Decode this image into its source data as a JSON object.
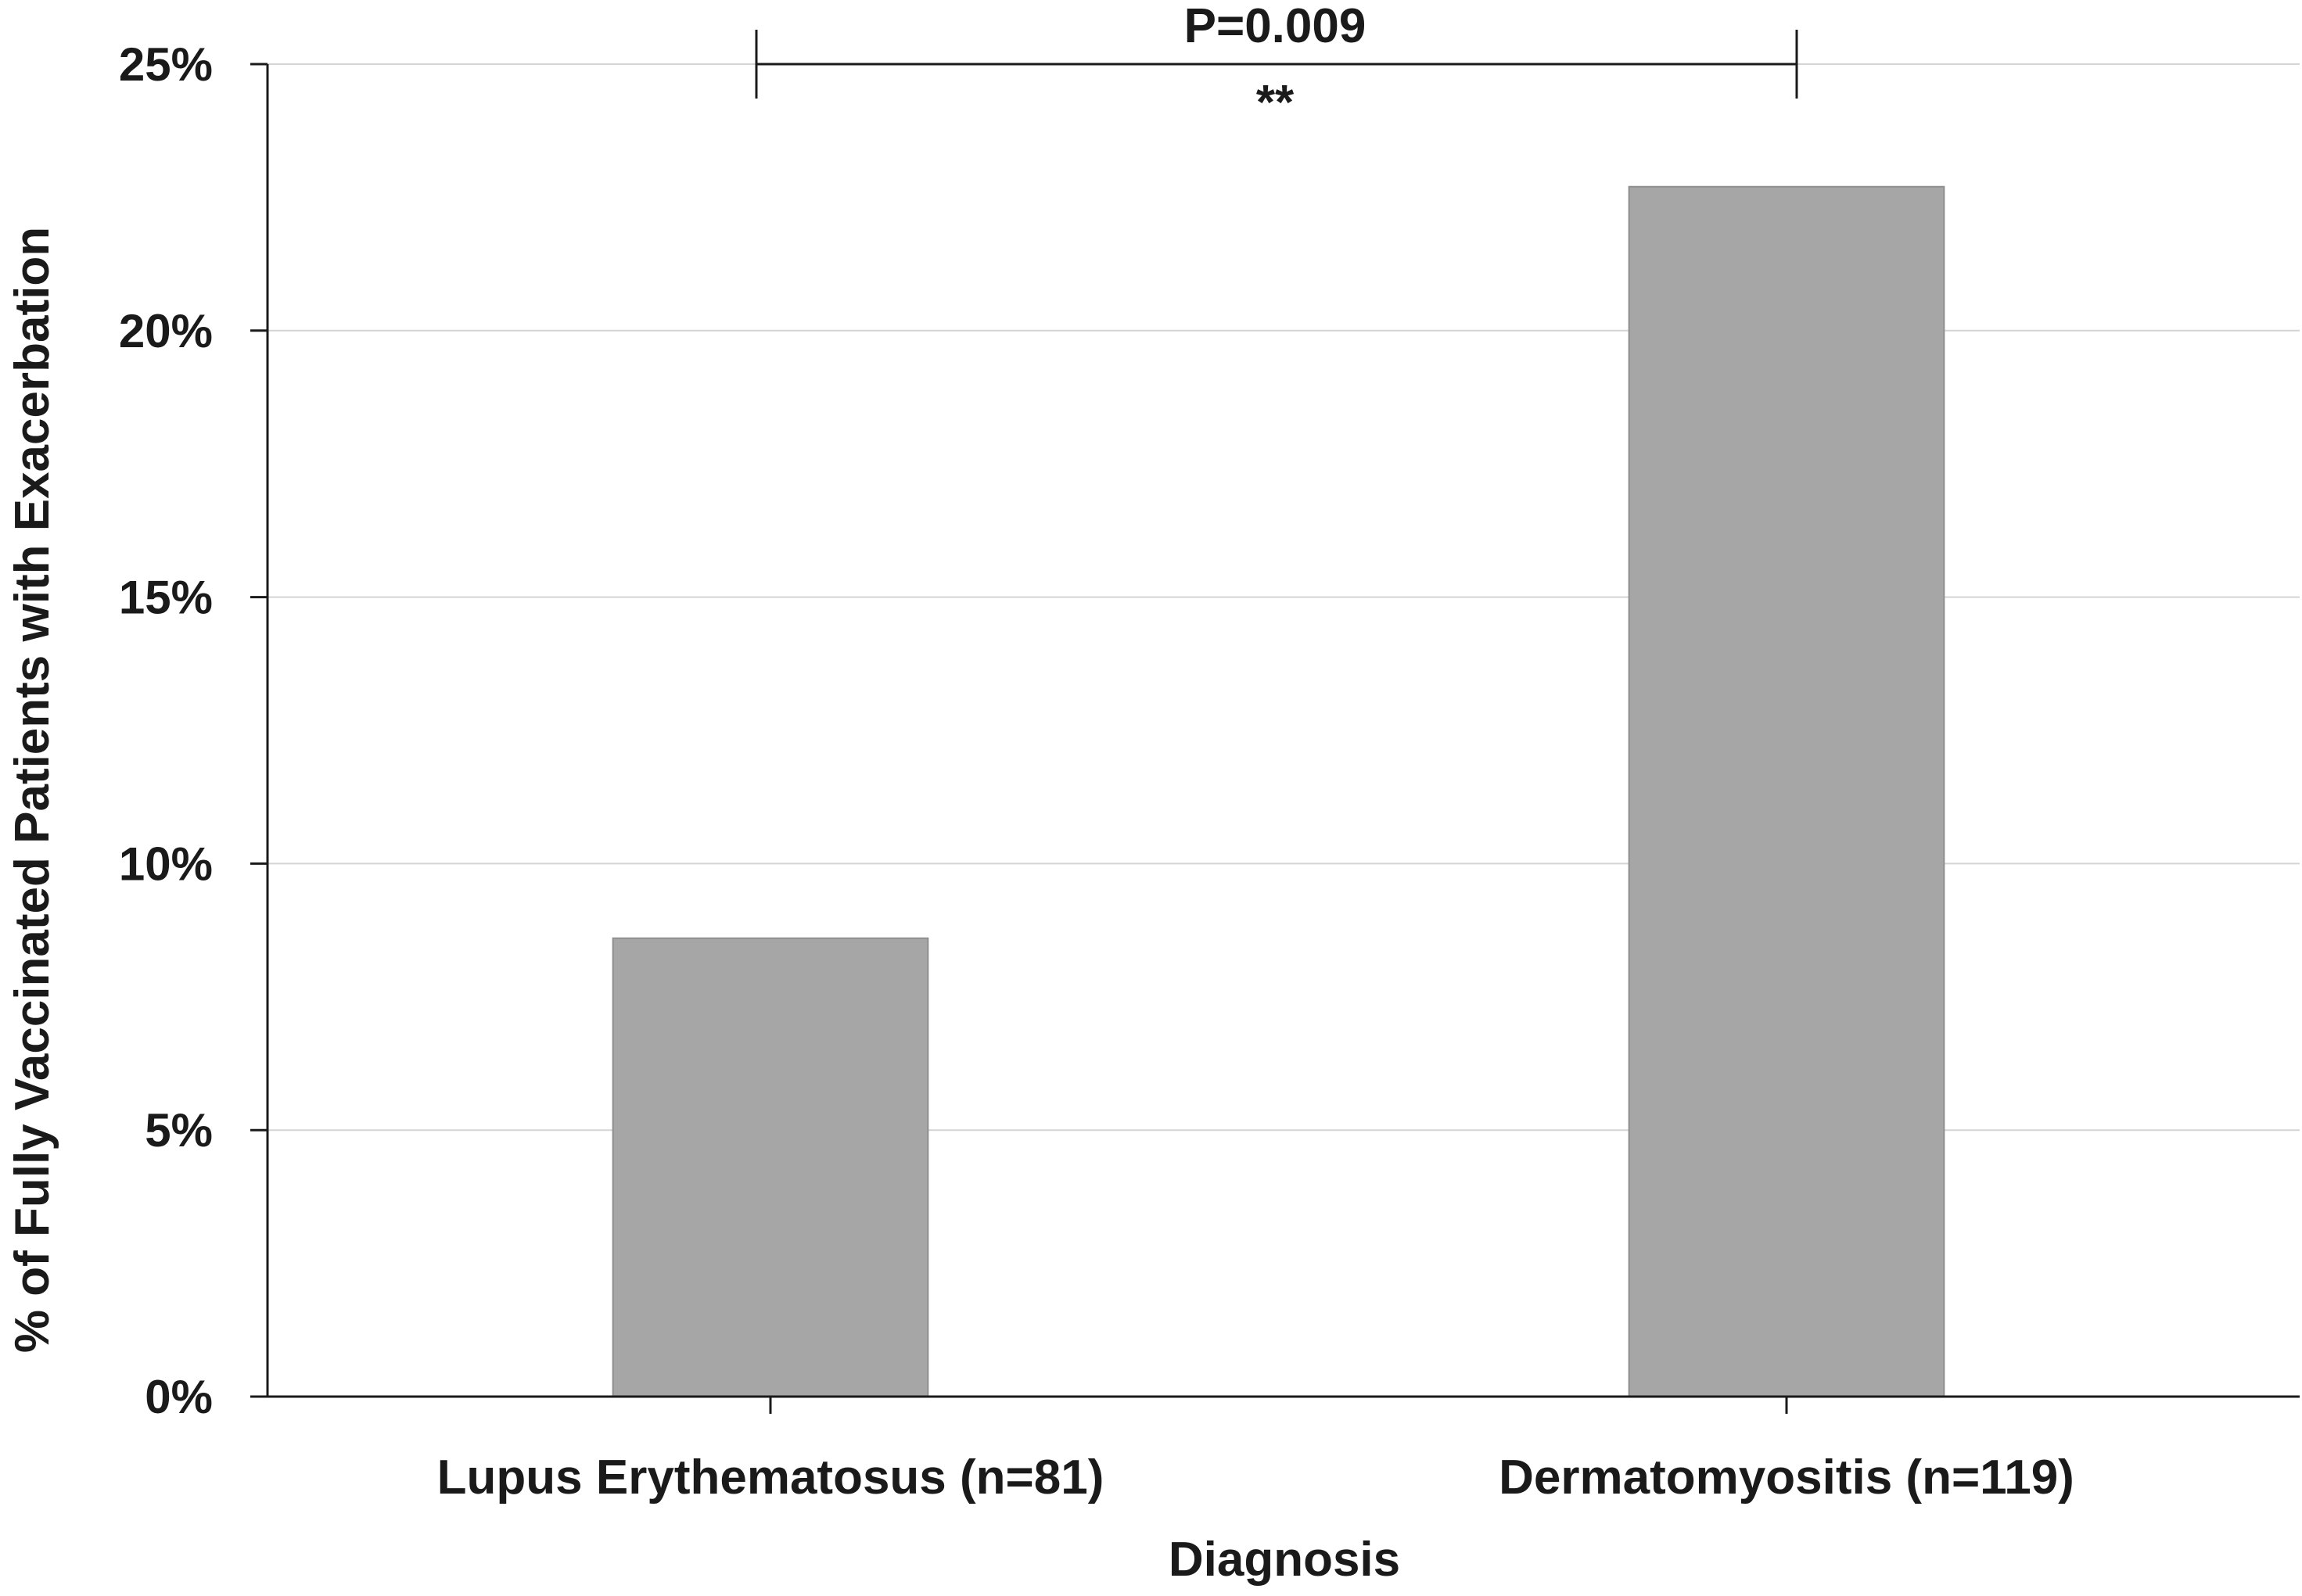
{
  "chart_data": {
    "type": "bar",
    "title": "",
    "xlabel": "Diagnosis",
    "ylabel": "% of Fully Vaccinated Patients with Exacerbation",
    "categories": [
      "Lupus Erythematosus (n=81)",
      "Dermatomyositis (n=119)"
    ],
    "values": [
      8.6,
      22.7
    ],
    "ylim": [
      0,
      25
    ],
    "yticks": [
      "0%",
      "5%",
      "10%",
      "15%",
      "20%",
      "25%"
    ],
    "grid": true,
    "legend": "none",
    "bar_color": "#a6a6a6",
    "annotation": {
      "p_value_label": "P=0.009",
      "significance": "**"
    }
  }
}
